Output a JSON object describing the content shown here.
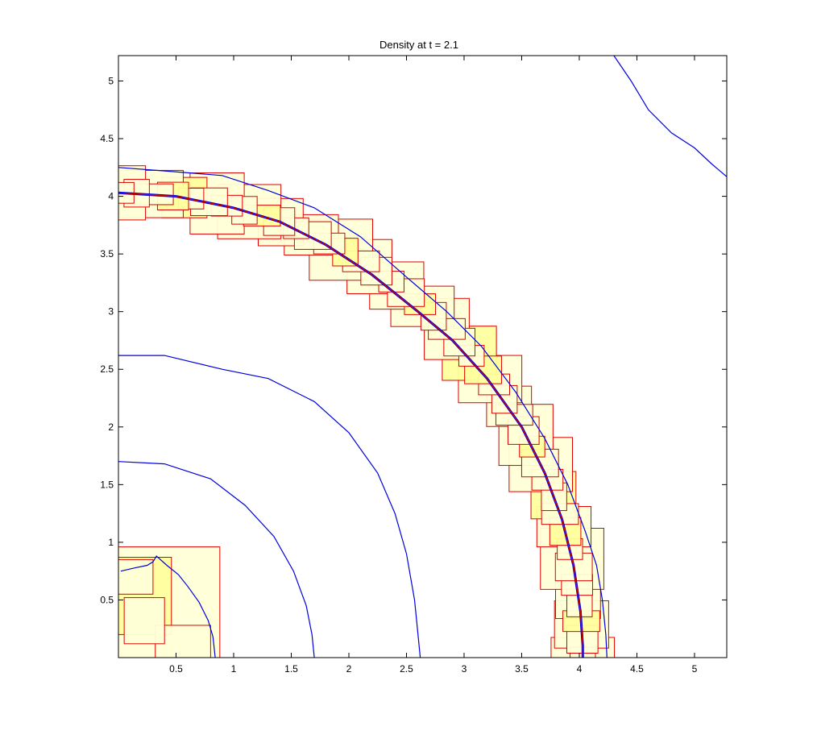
{
  "chart_data": {
    "type": "line",
    "title": "Density at t = 2.1",
    "xlabel": "",
    "ylabel": "",
    "xlim": [
      0,
      5.28
    ],
    "ylim": [
      0,
      5.22
    ],
    "x_ticks": [
      "0.5",
      "1",
      "1.5",
      "2",
      "2.5",
      "3",
      "3.5",
      "4",
      "4.5",
      "5"
    ],
    "y_ticks": [
      "0.5",
      "1",
      "1.5",
      "2",
      "2.5",
      "3",
      "3.5",
      "4",
      "4.5",
      "5"
    ],
    "x_tick_values": [
      0.5,
      1,
      1.5,
      2,
      2.5,
      3,
      3.5,
      4,
      4.5,
      5
    ],
    "y_tick_values": [
      0.5,
      1,
      1.5,
      2,
      2.5,
      3,
      3.5,
      4,
      4.5,
      5
    ],
    "grid": false,
    "colors": {
      "contour": "#0000dd",
      "patch_edge": "#dd0000",
      "patch_fill_coarse": "#ffffd8",
      "patch_fill_fine": "#ffff9e"
    },
    "series": [
      {
        "x": [
          0,
          0.5,
          1.0,
          1.4,
          1.8,
          2.2,
          2.6,
          2.9,
          3.2,
          3.5,
          3.7,
          3.85,
          3.95,
          4.01,
          4.03,
          4.03
        ],
        "y": [
          4.03,
          4.0,
          3.9,
          3.78,
          3.58,
          3.32,
          3.0,
          2.75,
          2.42,
          2.0,
          1.6,
          1.2,
          0.8,
          0.4,
          0.1,
          0
        ]
      },
      {
        "x": [
          0,
          0.4,
          0.9,
          1.3,
          1.7,
          2.1,
          2.5,
          2.85,
          3.15,
          3.45,
          3.7,
          3.9,
          4.05,
          4.15,
          4.2,
          4.23,
          4.24
        ],
        "y": [
          4.25,
          4.22,
          4.18,
          4.05,
          3.9,
          3.65,
          3.3,
          3.0,
          2.7,
          2.3,
          1.9,
          1.5,
          1.1,
          0.8,
          0.5,
          0.2,
          0
        ]
      },
      {
        "x": [
          0,
          0.4,
          0.9,
          1.3,
          1.7,
          2.0,
          2.25,
          2.4,
          2.5,
          2.57,
          2.6,
          2.62
        ],
        "y": [
          2.62,
          2.62,
          2.5,
          2.42,
          2.22,
          1.95,
          1.6,
          1.25,
          0.9,
          0.5,
          0.2,
          0
        ]
      },
      {
        "x": [
          0,
          0.4,
          0.8,
          1.1,
          1.35,
          1.52,
          1.63,
          1.68,
          1.7
        ],
        "y": [
          1.7,
          1.68,
          1.55,
          1.32,
          1.05,
          0.75,
          0.45,
          0.2,
          0
        ]
      },
      {
        "x": [
          4.3,
          4.45,
          4.6,
          4.8,
          5.0,
          5.15,
          5.28
        ],
        "y": [
          5.22,
          5.0,
          4.75,
          4.55,
          4.42,
          4.28,
          4.17
        ]
      },
      {
        "x": [
          0.02,
          0.15,
          0.25,
          0.3,
          0.33,
          0.42,
          0.52,
          0.6,
          0.7,
          0.78,
          0.82,
          0.84
        ],
        "y": [
          0.75,
          0.78,
          0.8,
          0.83,
          0.88,
          0.8,
          0.72,
          0.62,
          0.48,
          0.32,
          0.18,
          0.0
        ]
      }
    ]
  }
}
